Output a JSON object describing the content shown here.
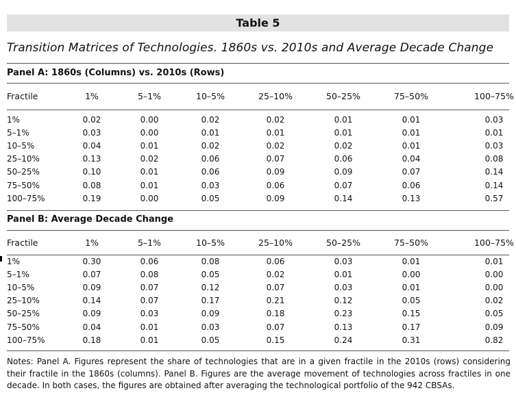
{
  "table_label": "Table 5",
  "subtitle": "Transition Matrices of Technologies. 1860s vs. 2010s and Average Decade Change",
  "columns": [
    "Fractile",
    "1%",
    "5–1%",
    "10–5%",
    "25–10%",
    "50–25%",
    "75–50%",
    "100–75%"
  ],
  "panel_a": {
    "title": "Panel A: 1860s (Columns) vs. 2010s (Rows)",
    "rows": [
      [
        "1%",
        "0.02",
        "0.00",
        "0.02",
        "0.02",
        "0.01",
        "0.01",
        "0.03"
      ],
      [
        "5–1%",
        "0.03",
        "0.00",
        "0.01",
        "0.01",
        "0.01",
        "0.01",
        "0.01"
      ],
      [
        "10–5%",
        "0.04",
        "0.01",
        "0.02",
        "0.02",
        "0.02",
        "0.01",
        "0.03"
      ],
      [
        "25–10%",
        "0.13",
        "0.02",
        "0.06",
        "0.07",
        "0.06",
        "0.04",
        "0.08"
      ],
      [
        "50–25%",
        "0.10",
        "0.01",
        "0.06",
        "0.09",
        "0.09",
        "0.07",
        "0.14"
      ],
      [
        "75–50%",
        "0.08",
        "0.01",
        "0.03",
        "0.06",
        "0.07",
        "0.06",
        "0.14"
      ],
      [
        "100–75%",
        "0.19",
        "0.00",
        "0.05",
        "0.09",
        "0.14",
        "0.13",
        "0.57"
      ]
    ]
  },
  "panel_b": {
    "title": "Panel B: Average Decade Change",
    "rows": [
      [
        "1%",
        "0.30",
        "0.06",
        "0.08",
        "0.06",
        "0.03",
        "0.01",
        "0.01"
      ],
      [
        "5–1%",
        "0.07",
        "0.08",
        "0.05",
        "0.02",
        "0.01",
        "0.00",
        "0.00"
      ],
      [
        "10–5%",
        "0.09",
        "0.07",
        "0.12",
        "0.07",
        "0.03",
        "0.01",
        "0.00"
      ],
      [
        "25–10%",
        "0.14",
        "0.07",
        "0.17",
        "0.21",
        "0.12",
        "0.05",
        "0.02"
      ],
      [
        "50–25%",
        "0.09",
        "0.03",
        "0.09",
        "0.18",
        "0.23",
        "0.15",
        "0.05"
      ],
      [
        "75–50%",
        "0.04",
        "0.01",
        "0.03",
        "0.07",
        "0.13",
        "0.17",
        "0.09"
      ],
      [
        "100–75%",
        "0.18",
        "0.01",
        "0.05",
        "0.15",
        "0.24",
        "0.31",
        "0.82"
      ]
    ]
  },
  "notes": "Notes: Panel A. Figures represent the share of technologies that are in a given fractile in the 2010s (rows) considering their fractile in the 1860s (columns). Panel B. Figures are the average movement of technologies across fractiles in one decade. In both cases, the figures are obtained after averaging the technological portfolio of the 942 CBSAs."
}
